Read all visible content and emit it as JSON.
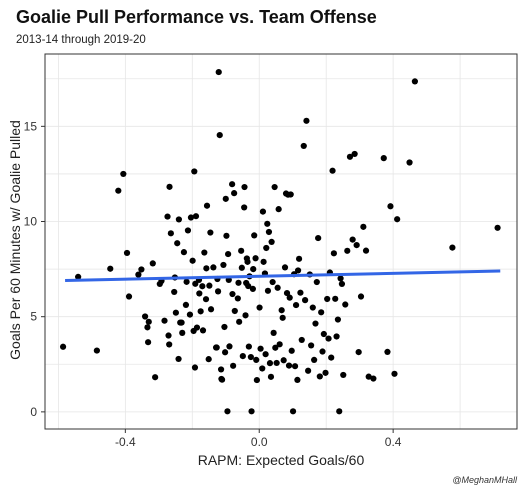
{
  "chart_data": {
    "type": "scatter",
    "title": "Goalie Pull Performance vs. Team Offense",
    "subtitle": "2013-14 through 2019-20",
    "xlabel": "RAPM: Expected Goals/60",
    "ylabel": "Goals Per 60 Minutes w/ Goalie Pulled",
    "caption": "@MeghanMHall",
    "xlim": [
      -0.64,
      0.77
    ],
    "ylim": [
      -0.9,
      18.8
    ],
    "x_ticks": [
      -0.4,
      0.0,
      0.4
    ],
    "x_tick_labels": [
      "-0.4",
      "0.0",
      "0.4"
    ],
    "y_ticks": [
      0,
      5,
      10,
      15
    ],
    "y_tick_labels": [
      "0",
      "5",
      "10",
      "15"
    ],
    "grid": true,
    "colors": {
      "points": "#000000",
      "trend": "#3366e6",
      "panel_border": "#333333",
      "grid": "#e6e6e6"
    },
    "trend_line": {
      "x": [
        -0.58,
        0.72
      ],
      "y": [
        6.9,
        7.4
      ]
    },
    "points": [
      {
        "x": -0.586,
        "y": 3.42
      },
      {
        "x": -0.541,
        "y": 7.09
      },
      {
        "x": -0.485,
        "y": 3.22
      },
      {
        "x": -0.445,
        "y": 7.52
      },
      {
        "x": -0.421,
        "y": 11.62
      },
      {
        "x": -0.406,
        "y": 12.5
      },
      {
        "x": -0.395,
        "y": 8.35
      },
      {
        "x": -0.389,
        "y": 6.06
      },
      {
        "x": -0.361,
        "y": 7.21
      },
      {
        "x": -0.352,
        "y": 7.48
      },
      {
        "x": -0.341,
        "y": 5.01
      },
      {
        "x": -0.334,
        "y": 4.44
      },
      {
        "x": -0.332,
        "y": 3.66
      },
      {
        "x": -0.33,
        "y": 4.73
      },
      {
        "x": -0.318,
        "y": 7.8
      },
      {
        "x": -0.311,
        "y": 1.82
      },
      {
        "x": -0.297,
        "y": 6.72
      },
      {
        "x": -0.292,
        "y": 6.88
      },
      {
        "x": -0.283,
        "y": 4.79
      },
      {
        "x": -0.274,
        "y": 10.26
      },
      {
        "x": -0.271,
        "y": 4.01
      },
      {
        "x": -0.269,
        "y": 3.54
      },
      {
        "x": -0.268,
        "y": 11.82
      },
      {
        "x": -0.264,
        "y": 9.38
      },
      {
        "x": -0.254,
        "y": 6.3
      },
      {
        "x": -0.252,
        "y": 7.06
      },
      {
        "x": -0.249,
        "y": 5.21
      },
      {
        "x": -0.245,
        "y": 8.86
      },
      {
        "x": -0.241,
        "y": 2.78
      },
      {
        "x": -0.24,
        "y": 10.11
      },
      {
        "x": -0.236,
        "y": 4.69
      },
      {
        "x": -0.232,
        "y": 4.69
      },
      {
        "x": -0.23,
        "y": 4.15
      },
      {
        "x": -0.225,
        "y": 8.39
      },
      {
        "x": -0.219,
        "y": 5.62
      },
      {
        "x": -0.217,
        "y": 6.83
      },
      {
        "x": -0.213,
        "y": 9.53
      },
      {
        "x": -0.207,
        "y": 5.11
      },
      {
        "x": -0.204,
        "y": 10.21
      },
      {
        "x": -0.199,
        "y": 7.94
      },
      {
        "x": -0.196,
        "y": 4.25
      },
      {
        "x": -0.194,
        "y": 12.63
      },
      {
        "x": -0.192,
        "y": 2.33
      },
      {
        "x": -0.191,
        "y": 6.73
      },
      {
        "x": -0.189,
        "y": 10.28
      },
      {
        "x": -0.186,
        "y": 4.43
      },
      {
        "x": -0.18,
        "y": 6.93
      },
      {
        "x": -0.179,
        "y": 6.22
      },
      {
        "x": -0.175,
        "y": 5.28
      },
      {
        "x": -0.17,
        "y": 6.6
      },
      {
        "x": -0.168,
        "y": 4.28
      },
      {
        "x": -0.164,
        "y": 8.37
      },
      {
        "x": -0.159,
        "y": 5.92
      },
      {
        "x": -0.158,
        "y": 7.54
      },
      {
        "x": -0.156,
        "y": 10.83
      },
      {
        "x": -0.151,
        "y": 2.77
      },
      {
        "x": -0.149,
        "y": 6.63
      },
      {
        "x": -0.146,
        "y": 9.42
      },
      {
        "x": -0.144,
        "y": 5.39
      },
      {
        "x": -0.137,
        "y": 7.59
      },
      {
        "x": -0.129,
        "y": 3.38
      },
      {
        "x": -0.127,
        "y": 3.38
      },
      {
        "x": -0.125,
        "y": 6.98
      },
      {
        "x": -0.123,
        "y": 6.33
      },
      {
        "x": -0.121,
        "y": 17.85
      },
      {
        "x": -0.118,
        "y": 14.54
      },
      {
        "x": -0.114,
        "y": 2.23
      },
      {
        "x": -0.113,
        "y": 1.73
      },
      {
        "x": -0.111,
        "y": 1.69
      },
      {
        "x": -0.107,
        "y": 7.72
      },
      {
        "x": -0.104,
        "y": 4.46
      },
      {
        "x": -0.102,
        "y": 3.13
      },
      {
        "x": -0.1,
        "y": 11.19
      },
      {
        "x": -0.098,
        "y": 9.25
      },
      {
        "x": -0.095,
        "y": 0.03
      },
      {
        "x": -0.093,
        "y": 8.29
      },
      {
        "x": -0.091,
        "y": 6.93
      },
      {
        "x": -0.089,
        "y": 3.44
      },
      {
        "x": -0.081,
        "y": 11.96
      },
      {
        "x": -0.08,
        "y": 6.19
      },
      {
        "x": -0.078,
        "y": 2.42
      },
      {
        "x": -0.075,
        "y": 11.49
      },
      {
        "x": -0.073,
        "y": 5.3
      },
      {
        "x": -0.064,
        "y": 5.96
      },
      {
        "x": -0.062,
        "y": 6.78
      },
      {
        "x": -0.06,
        "y": 4.73
      },
      {
        "x": -0.054,
        "y": 8.46
      },
      {
        "x": -0.052,
        "y": 7.57
      },
      {
        "x": -0.049,
        "y": 2.93
      },
      {
        "x": -0.045,
        "y": 10.74
      },
      {
        "x": -0.044,
        "y": 11.81
      },
      {
        "x": -0.041,
        "y": 5.07
      },
      {
        "x": -0.039,
        "y": 6.77
      },
      {
        "x": -0.037,
        "y": 8.06
      },
      {
        "x": -0.035,
        "y": 7.88
      },
      {
        "x": -0.033,
        "y": 6.61
      },
      {
        "x": -0.031,
        "y": 3.43
      },
      {
        "x": -0.029,
        "y": 7.12
      },
      {
        "x": -0.025,
        "y": 2.88
      },
      {
        "x": -0.023,
        "y": 0.03
      },
      {
        "x": -0.019,
        "y": 6.46
      },
      {
        "x": -0.018,
        "y": 7.5
      },
      {
        "x": -0.015,
        "y": 9.27
      },
      {
        "x": -0.011,
        "y": 8.07
      },
      {
        "x": -0.009,
        "y": 2.73
      },
      {
        "x": -0.007,
        "y": 1.67
      },
      {
        "x": 0.001,
        "y": 5.48
      },
      {
        "x": 0.004,
        "y": 3.32
      },
      {
        "x": 0.009,
        "y": 2.28
      },
      {
        "x": 0.011,
        "y": 10.52
      },
      {
        "x": 0.013,
        "y": 7.88
      },
      {
        "x": 0.017,
        "y": 7.27
      },
      {
        "x": 0.019,
        "y": 3.03
      },
      {
        "x": 0.021,
        "y": 8.61
      },
      {
        "x": 0.024,
        "y": 9.88
      },
      {
        "x": 0.026,
        "y": 6.36
      },
      {
        "x": 0.029,
        "y": 9.45
      },
      {
        "x": 0.032,
        "y": 2.56
      },
      {
        "x": 0.035,
        "y": 1.84
      },
      {
        "x": 0.037,
        "y": 8.93
      },
      {
        "x": 0.04,
        "y": 6.82
      },
      {
        "x": 0.043,
        "y": 4.15
      },
      {
        "x": 0.046,
        "y": 11.81
      },
      {
        "x": 0.048,
        "y": 3.37
      },
      {
        "x": 0.052,
        "y": 2.57
      },
      {
        "x": 0.055,
        "y": 6.52
      },
      {
        "x": 0.058,
        "y": 10.65
      },
      {
        "x": 0.061,
        "y": 3.55
      },
      {
        "x": 0.067,
        "y": 5.34
      },
      {
        "x": 0.07,
        "y": 4.94
      },
      {
        "x": 0.073,
        "y": 2.71
      },
      {
        "x": 0.077,
        "y": 7.59
      },
      {
        "x": 0.08,
        "y": 11.47
      },
      {
        "x": 0.083,
        "y": 6.24
      },
      {
        "x": 0.086,
        "y": 11.41
      },
      {
        "x": 0.089,
        "y": 2.43
      },
      {
        "x": 0.091,
        "y": 6.0
      },
      {
        "x": 0.094,
        "y": 11.42
      },
      {
        "x": 0.097,
        "y": 3.21
      },
      {
        "x": 0.101,
        "y": 0.03
      },
      {
        "x": 0.104,
        "y": 7.23
      },
      {
        "x": 0.107,
        "y": 2.4
      },
      {
        "x": 0.11,
        "y": 5.61
      },
      {
        "x": 0.114,
        "y": 1.68
      },
      {
        "x": 0.116,
        "y": 7.43
      },
      {
        "x": 0.119,
        "y": 8.04
      },
      {
        "x": 0.123,
        "y": 6.26
      },
      {
        "x": 0.127,
        "y": 3.78
      },
      {
        "x": 0.133,
        "y": 13.97
      },
      {
        "x": 0.137,
        "y": 5.87
      },
      {
        "x": 0.141,
        "y": 15.29
      },
      {
        "x": 0.146,
        "y": 2.16
      },
      {
        "x": 0.151,
        "y": 7.22
      },
      {
        "x": 0.155,
        "y": 3.49
      },
      {
        "x": 0.16,
        "y": 5.48
      },
      {
        "x": 0.164,
        "y": 2.73
      },
      {
        "x": 0.168,
        "y": 4.64
      },
      {
        "x": 0.172,
        "y": 6.82
      },
      {
        "x": 0.176,
        "y": 9.13
      },
      {
        "x": 0.181,
        "y": 1.86
      },
      {
        "x": 0.185,
        "y": 5.23
      },
      {
        "x": 0.189,
        "y": 3.17
      },
      {
        "x": 0.193,
        "y": 4.09
      },
      {
        "x": 0.198,
        "y": 2.05
      },
      {
        "x": 0.203,
        "y": 5.93
      },
      {
        "x": 0.207,
        "y": 3.85
      },
      {
        "x": 0.211,
        "y": 7.32
      },
      {
        "x": 0.215,
        "y": 2.85
      },
      {
        "x": 0.219,
        "y": 12.67
      },
      {
        "x": 0.223,
        "y": 8.33
      },
      {
        "x": 0.227,
        "y": 5.94
      },
      {
        "x": 0.231,
        "y": 3.96
      },
      {
        "x": 0.235,
        "y": 4.85
      },
      {
        "x": 0.239,
        "y": 0.03
      },
      {
        "x": 0.243,
        "y": 7.01
      },
      {
        "x": 0.247,
        "y": 6.72
      },
      {
        "x": 0.251,
        "y": 1.94
      },
      {
        "x": 0.257,
        "y": 5.64
      },
      {
        "x": 0.263,
        "y": 8.46
      },
      {
        "x": 0.271,
        "y": 13.4
      },
      {
        "x": 0.279,
        "y": 9.05
      },
      {
        "x": 0.285,
        "y": 13.55
      },
      {
        "x": 0.291,
        "y": 8.76
      },
      {
        "x": 0.297,
        "y": 3.14
      },
      {
        "x": 0.304,
        "y": 6.06
      },
      {
        "x": 0.311,
        "y": 9.72
      },
      {
        "x": 0.319,
        "y": 8.47
      },
      {
        "x": 0.327,
        "y": 1.85
      },
      {
        "x": 0.341,
        "y": 1.75
      },
      {
        "x": 0.372,
        "y": 13.33
      },
      {
        "x": 0.383,
        "y": 3.15
      },
      {
        "x": 0.392,
        "y": 10.8
      },
      {
        "x": 0.404,
        "y": 2.0
      },
      {
        "x": 0.412,
        "y": 10.12
      },
      {
        "x": 0.449,
        "y": 13.1
      },
      {
        "x": 0.465,
        "y": 17.36
      },
      {
        "x": 0.577,
        "y": 8.63
      },
      {
        "x": 0.712,
        "y": 9.67
      }
    ]
  }
}
